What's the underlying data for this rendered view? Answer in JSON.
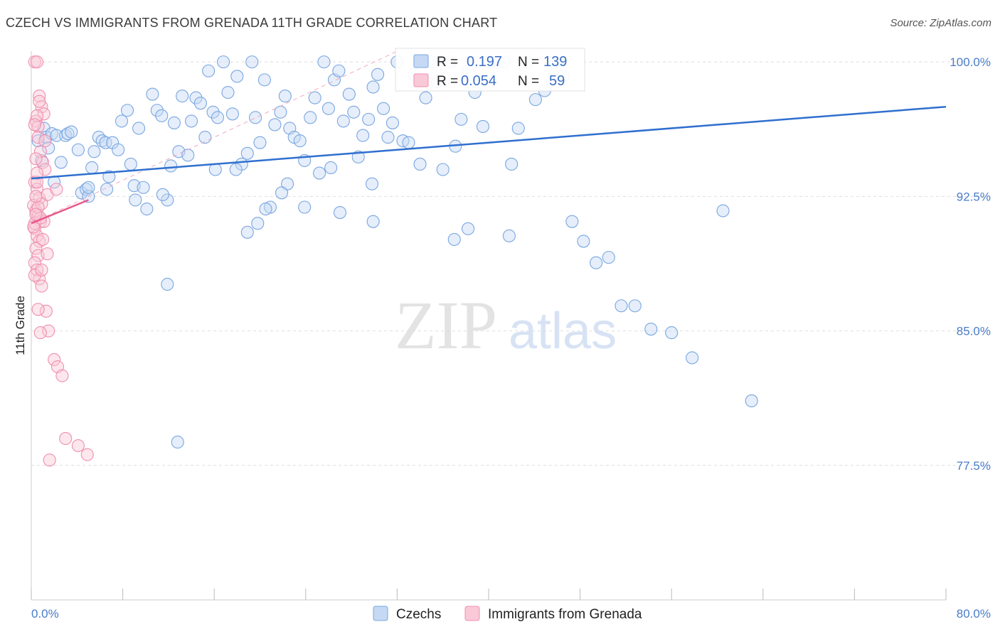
{
  "header": {
    "title": "CZECH VS IMMIGRANTS FROM GRENADA 11TH GRADE CORRELATION CHART",
    "source": "Source: ZipAtlas.com"
  },
  "watermark": {
    "zip": "ZIP",
    "atlas": "atlas"
  },
  "legend": {
    "r_label": "R =",
    "n_label": "N =",
    "rows": [
      {
        "name": "Czechs",
        "r": "0.197",
        "n": "139",
        "color": "#7aa6e0"
      },
      {
        "name": "Immigrants from Grenada",
        "r": "0.054",
        "n": "59",
        "color": "#f08fb0"
      }
    ]
  },
  "chart_data": {
    "type": "scatter",
    "title": "CZECH VS IMMIGRANTS FROM GRENADA 11TH GRADE CORRELATION CHART",
    "xlabel": "",
    "ylabel": "11th Grade",
    "xlim": [
      0,
      80
    ],
    "ylim": [
      70,
      100.6
    ],
    "x_tick_labels": [
      "0.0%",
      "80.0%"
    ],
    "y_ticks": [
      77.5,
      85.0,
      92.5,
      100.0
    ],
    "y_tick_labels": [
      "77.5%",
      "85.0%",
      "92.5%",
      "100.0%"
    ],
    "grid": true,
    "series": [
      {
        "name": "Czechs",
        "color": "#7aa6e0",
        "trend": {
          "x": [
            0,
            80
          ],
          "y": [
            93.5,
            97.5
          ]
        },
        "x": [
          0.6,
          0.9,
          1.1,
          1.3,
          1.5,
          1.8,
          2.0,
          2.2,
          2.6,
          3.0,
          3.2,
          3.5,
          4.1,
          4.4,
          4.8,
          5.0,
          5.3,
          5.5,
          5.9,
          6.2,
          6.5,
          6.8,
          7.1,
          7.6,
          7.9,
          8.4,
          8.7,
          9.0,
          9.4,
          9.8,
          10.1,
          10.6,
          11.0,
          11.4,
          11.9,
          12.2,
          12.5,
          12.9,
          13.2,
          13.7,
          14.0,
          14.4,
          14.8,
          15.2,
          15.5,
          15.9,
          16.3,
          16.8,
          17.2,
          17.6,
          18.0,
          18.4,
          18.9,
          19.3,
          19.6,
          20.0,
          20.4,
          20.9,
          21.3,
          21.8,
          22.2,
          22.6,
          23.0,
          23.5,
          23.9,
          24.4,
          24.8,
          25.2,
          25.6,
          26.0,
          26.5,
          26.9,
          27.3,
          27.8,
          28.2,
          28.6,
          29.0,
          29.5,
          29.9,
          30.3,
          30.8,
          31.2,
          31.6,
          32.0,
          32.5,
          33.0,
          33.5,
          34.0,
          34.5,
          35.0,
          35.5,
          36.0,
          36.6,
          37.1,
          37.6,
          38.2,
          38.8,
          39.5,
          40.1,
          40.8,
          41.4,
          42.0,
          42.6,
          43.4,
          44.1,
          44.9,
          45.7,
          46.5,
          47.3,
          48.3,
          49.4,
          50.5,
          51.6,
          52.8,
          54.2,
          56.0,
          57.8,
          60.5,
          63.0,
          12.8,
          11.5,
          6.6,
          17.9,
          16.1,
          20.5,
          29.8,
          22.4,
          18.9,
          19.8,
          9.1,
          23.9,
          27.0,
          29.9,
          38.2,
          41.8,
          21.9,
          37.0,
          5.0,
          11.9,
          26.2
        ],
        "y": [
          95.6,
          94.5,
          96.3,
          95.8,
          95.2,
          96.0,
          93.3,
          95.9,
          94.4,
          95.9,
          96.0,
          96.1,
          95.1,
          92.7,
          92.9,
          92.5,
          94.1,
          95.0,
          95.8,
          95.6,
          95.5,
          93.6,
          95.5,
          95.1,
          96.7,
          97.3,
          94.3,
          93.1,
          96.3,
          93.0,
          91.8,
          98.2,
          97.3,
          97.0,
          92.3,
          94.2,
          96.6,
          95.0,
          98.1,
          94.8,
          96.7,
          98.0,
          97.7,
          95.8,
          99.5,
          97.2,
          96.9,
          100.0,
          98.3,
          97.1,
          99.2,
          94.3,
          94.9,
          100.0,
          96.9,
          95.5,
          99.0,
          91.9,
          96.5,
          97.2,
          98.1,
          96.3,
          95.8,
          95.6,
          94.5,
          96.9,
          98.0,
          93.8,
          100.0,
          97.4,
          99.0,
          99.5,
          96.7,
          98.2,
          97.2,
          94.7,
          95.9,
          96.8,
          98.6,
          99.3,
          97.4,
          95.8,
          96.6,
          100.0,
          95.6,
          95.5,
          99.3,
          94.3,
          98.0,
          100.0,
          98.9,
          94.0,
          100.0,
          95.3,
          96.8,
          99.5,
          98.3,
          96.4,
          100.0,
          100.0,
          100.0,
          94.3,
          96.3,
          100.0,
          97.9,
          98.4,
          100.0,
          99.2,
          91.1,
          90.0,
          88.8,
          89.1,
          86.4,
          86.4,
          85.1,
          84.9,
          83.5,
          91.7,
          81.1,
          78.8,
          92.6,
          92.9,
          94.0,
          94.0,
          91.8,
          93.2,
          93.2,
          90.5,
          91.0,
          92.3,
          91.9,
          91.6,
          91.1,
          90.7,
          90.3,
          92.7,
          90.1,
          93.0,
          87.6,
          94.1
        ],
        "note": "points estimated from marker positions"
      },
      {
        "name": "Immigrants from Grenada",
        "color": "#f08fb0",
        "trend": {
          "x": [
            0,
            5
          ],
          "y": [
            91.0,
            92.3
          ]
        },
        "x": [
          0.3,
          0.5,
          0.7,
          0.9,
          1.1,
          0.4,
          0.6,
          0.8,
          1.0,
          1.2,
          0.3,
          0.5,
          0.7,
          0.2,
          0.4,
          0.6,
          0.8,
          0.3,
          0.5,
          0.7,
          0.4,
          0.6,
          0.3,
          0.5,
          0.7,
          0.9,
          1.3,
          1.5,
          2.0,
          2.3,
          2.7,
          3.0,
          4.1,
          4.9,
          1.6,
          1.4,
          0.9,
          1.1,
          0.5,
          0.3,
          0.2,
          0.4,
          0.6,
          0.5,
          0.7,
          0.3,
          0.6,
          0.4,
          0.8,
          1.0,
          0.5,
          1.2,
          0.3,
          0.6,
          0.8,
          2.2,
          1.4,
          0.9,
          0.4
        ],
        "y": [
          100.0,
          100.0,
          98.1,
          97.5,
          97.1,
          96.7,
          96.4,
          95.0,
          94.4,
          94.0,
          93.3,
          92.9,
          92.4,
          92.0,
          91.7,
          91.4,
          91.1,
          90.7,
          90.3,
          90.0,
          89.6,
          89.2,
          88.8,
          88.4,
          87.9,
          87.5,
          86.1,
          85.0,
          83.4,
          83.0,
          82.5,
          79.0,
          78.6,
          78.1,
          77.8,
          92.6,
          92.1,
          91.1,
          93.3,
          91.0,
          90.8,
          94.6,
          95.8,
          97.0,
          97.8,
          96.5,
          91.9,
          92.5,
          91.3,
          90.1,
          93.8,
          95.6,
          88.1,
          86.2,
          84.9,
          92.9,
          89.3,
          88.4,
          91.5
        ],
        "note": "points estimated from marker positions"
      }
    ]
  }
}
